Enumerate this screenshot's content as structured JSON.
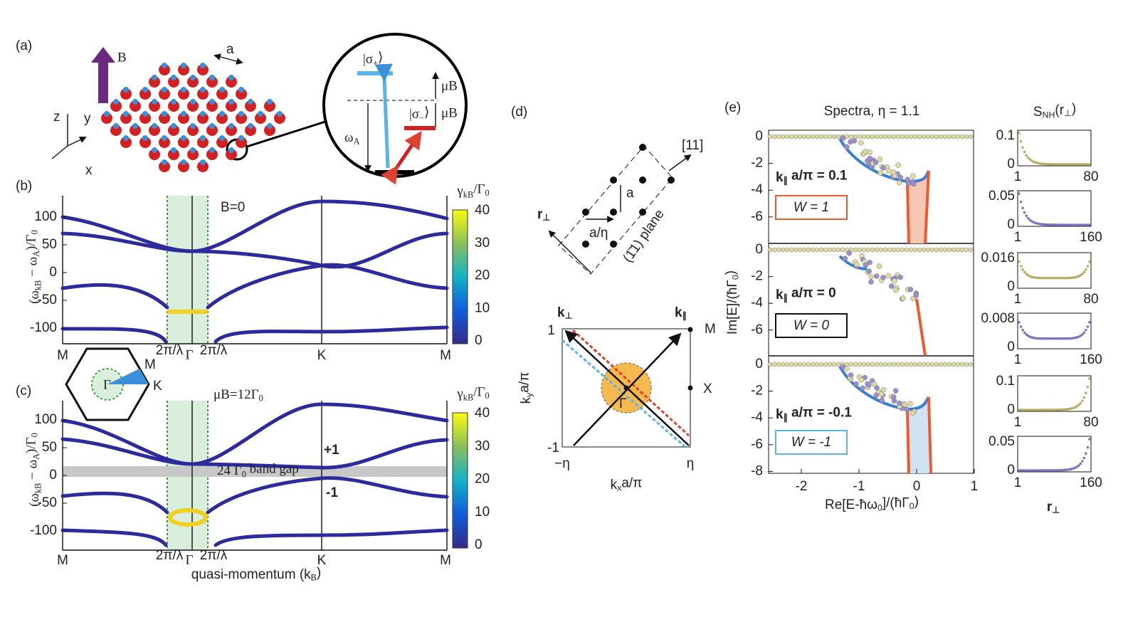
{
  "figure": {
    "a": {
      "label": "(a)",
      "field": "B",
      "lattice": "a",
      "axes": [
        "z",
        "y",
        "x"
      ],
      "sigma_plus": [
        "|σ",
        "+",
        "⟩"
      ],
      "sigma_minus": [
        "|σ",
        "−",
        "⟩"
      ],
      "muB_top": "μB",
      "muB_bottom": "μB",
      "omega": [
        "ω",
        "A"
      ]
    },
    "b": {
      "label": "(b)",
      "annotation": "B=0",
      "ylabel": [
        "(ω",
        "kB",
        " − ω",
        "A",
        ")/Γ",
        "0"
      ],
      "yticks": [
        100,
        50,
        0,
        -50,
        -100
      ],
      "xlabels": [
        "M",
        "2π/λ",
        "Γ",
        "2π/λ",
        "K",
        "M"
      ],
      "colorbar_title": [
        "γ",
        "kB",
        "/Γ",
        "0"
      ],
      "colorbar_ticks": [
        40,
        30,
        20,
        10,
        0
      ]
    },
    "inset": {
      "labels": [
        "Γ",
        "M",
        "K"
      ]
    },
    "c": {
      "label": "(c)",
      "annotation": [
        "μB=12Γ",
        "0"
      ],
      "ylabel": [
        "(ω",
        "kB",
        " − ω",
        "A",
        ")/Γ",
        "0"
      ],
      "yticks": [
        100,
        50,
        0,
        -50,
        -100
      ],
      "xlabels": [
        "M",
        "2π/λ",
        "Γ",
        "2π/λ",
        "K",
        "M"
      ],
      "band_gap": [
        "24 Γ",
        "0",
        " band gap"
      ],
      "chern_upper": "+1",
      "chern_lower": "-1",
      "xlabel": [
        "quasi-momentum (k",
        "B",
        ")"
      ],
      "colorbar_title": [
        "γ",
        "kB",
        "/Γ",
        "0"
      ],
      "colorbar_ticks": [
        40,
        30,
        20,
        10,
        0
      ]
    },
    "d": {
      "label": "(d)",
      "direction": "[11]",
      "spacing": "a",
      "r_perp": [
        "r",
        "⊥"
      ],
      "a_eta": "a/η",
      "plane": "(1̄1) plane",
      "k_perp": [
        "k",
        "⊥"
      ],
      "k_par": [
        "k",
        "∥"
      ],
      "yticks": [
        1,
        -1
      ],
      "points": [
        "M",
        "X",
        "Γ"
      ],
      "xticks": [
        "−η",
        "η"
      ],
      "xlabel": [
        "k",
        "x",
        "a/π"
      ],
      "ylabel": [
        "k",
        "y",
        "a/π"
      ]
    },
    "e": {
      "label": "(e)",
      "title": "Spectra, η = 1.1",
      "side_title": [
        "S",
        "NH",
        "(r",
        "⊥",
        ")"
      ],
      "panels": [
        {
          "k": [
            "k",
            "∥",
            " a/π = 0.1"
          ],
          "W": "W = 1",
          "yticks": [
            0,
            -2,
            -4,
            -6
          ]
        },
        {
          "k": [
            "k",
            "∥",
            " a/π = 0"
          ],
          "W": "W = 0",
          "yticks": [
            0,
            -2,
            -4,
            -6
          ]
        },
        {
          "k": [
            "k",
            "∥",
            " a/π = -0.1"
          ],
          "W": "W = -1",
          "yticks": [
            0,
            -2,
            -4,
            -6,
            -8
          ]
        }
      ],
      "xticks": [
        -2,
        -1,
        0,
        1
      ],
      "ylabel": [
        "Im[E]/(ħΓ",
        "0",
        ")"
      ],
      "xlabel": [
        "Re[E-ħω",
        "0",
        "]/(ħΓ",
        "0",
        ")"
      ],
      "side": [
        {
          "ymax": 0.1,
          "ymin": 0,
          "xmin": 1,
          "xmax": 80
        },
        {
          "ymax": 0.05,
          "ymin": 0,
          "xmin": 1,
          "xmax": 160
        },
        {
          "ymax": 0.016,
          "ymin": 0,
          "xmin": 1,
          "xmax": 80
        },
        {
          "ymax": 0.008,
          "ymin": 0,
          "xmin": 1,
          "xmax": 160
        },
        {
          "ymax": 0.1,
          "ymin": 0,
          "xmin": 1,
          "xmax": 80
        },
        {
          "ymax": 0.05,
          "ymin": 0,
          "xmin": 1,
          "xmax": 160
        }
      ],
      "side_xlabel": [
        "r",
        "⊥"
      ]
    }
  }
}
